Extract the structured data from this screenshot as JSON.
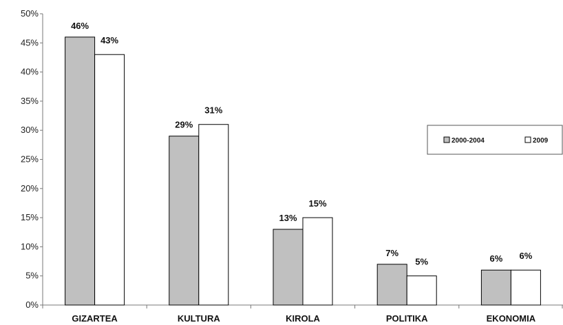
{
  "chart_data": {
    "type": "bar",
    "categories": [
      "GIZARTEA",
      "KULTURA",
      "KIROLA",
      "POLITIKA",
      "EKONOMIA"
    ],
    "series": [
      {
        "name": "2000-2004",
        "values": [
          46,
          29,
          13,
          7,
          6
        ],
        "color": "#c0c0c0",
        "data_labels": [
          "46%",
          "29%",
          "13%",
          "7%",
          "6%"
        ]
      },
      {
        "name": "2009",
        "values": [
          43,
          31,
          15,
          5,
          6
        ],
        "color": "#ffffff",
        "data_labels": [
          "43%",
          "31%",
          "15%",
          "5%",
          "6%"
        ]
      }
    ],
    "y_ticks": [
      "0%",
      "5%",
      "10%",
      "15%",
      "20%",
      "25%",
      "30%",
      "35%",
      "40%",
      "45%",
      "50%"
    ],
    "ylim": [
      0,
      50
    ],
    "title": "",
    "xlabel": "",
    "ylabel": "",
    "grid": false,
    "legend_position": "right",
    "bar_stroke": "#000000"
  }
}
